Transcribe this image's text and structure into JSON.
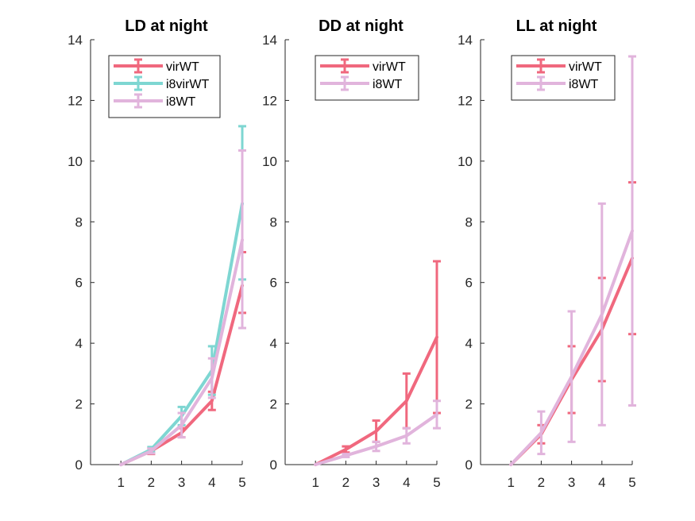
{
  "chart_data": [
    {
      "type": "line",
      "title": "LD at night",
      "x": [
        1,
        2,
        3,
        4,
        5
      ],
      "xlim": [
        0,
        5
      ],
      "ylim": [
        0,
        14
      ],
      "xticks": [
        "1",
        "2",
        "3",
        "4",
        "5"
      ],
      "yticks": [
        "0",
        "2",
        "4",
        "6",
        "8",
        "10",
        "12",
        "14"
      ],
      "legend_position": "top-right",
      "series": [
        {
          "name": "virWT",
          "color": "#f0687e",
          "values": [
            0,
            0.45,
            1.05,
            2.1,
            5.9
          ],
          "err_low": [
            0,
            0.1,
            0.15,
            0.3,
            0.9
          ],
          "err_high": [
            0,
            0.1,
            0.15,
            0.3,
            1.1
          ]
        },
        {
          "name": "i8virWT",
          "color": "#7ed6d2",
          "values": [
            0,
            0.5,
            1.6,
            3.1,
            8.6
          ],
          "err_low": [
            0,
            0.08,
            0.3,
            0.8,
            2.5
          ],
          "err_high": [
            0,
            0.08,
            0.3,
            0.8,
            2.55
          ]
        },
        {
          "name": "i8WT",
          "color": "#e1b4dc",
          "values": [
            0,
            0.45,
            1.3,
            2.85,
            7.4
          ],
          "err_low": [
            0,
            0.08,
            0.4,
            0.65,
            2.9
          ],
          "err_high": [
            0,
            0.08,
            0.4,
            0.65,
            2.95
          ]
        }
      ]
    },
    {
      "type": "line",
      "title": "DD at night",
      "x": [
        1,
        2,
        3,
        4,
        5
      ],
      "xlim": [
        0,
        5
      ],
      "ylim": [
        0,
        14
      ],
      "xticks": [
        "1",
        "2",
        "3",
        "4",
        "5"
      ],
      "yticks": [
        "0",
        "2",
        "4",
        "6",
        "8",
        "10",
        "12",
        "14"
      ],
      "legend_position": "top-center",
      "series": [
        {
          "name": "virWT",
          "color": "#f0687e",
          "values": [
            0,
            0.5,
            1.1,
            2.1,
            4.2
          ],
          "err_low": [
            0,
            0.1,
            0.35,
            0.9,
            2.5
          ],
          "err_high": [
            0,
            0.1,
            0.35,
            0.9,
            2.5
          ]
        },
        {
          "name": "i8WT",
          "color": "#e1b4dc",
          "values": [
            0,
            0.3,
            0.6,
            0.95,
            1.65
          ],
          "err_low": [
            0,
            0.05,
            0.15,
            0.25,
            0.45
          ],
          "err_high": [
            0,
            0.05,
            0.15,
            0.25,
            0.45
          ]
        }
      ]
    },
    {
      "type": "line",
      "title": "LL at night",
      "x": [
        1,
        2,
        3,
        4,
        5
      ],
      "xlim": [
        0,
        5
      ],
      "ylim": [
        0,
        14
      ],
      "xticks": [
        "1",
        "2",
        "3",
        "4",
        "5"
      ],
      "yticks": [
        "0",
        "2",
        "4",
        "6",
        "8",
        "10",
        "12",
        "14"
      ],
      "legend_position": "top-center",
      "series": [
        {
          "name": "virWT",
          "color": "#f0687e",
          "values": [
            0,
            1.0,
            2.8,
            4.45,
            6.8
          ],
          "err_low": [
            0,
            0.3,
            1.1,
            1.7,
            2.5
          ],
          "err_high": [
            0,
            0.3,
            1.1,
            1.7,
            2.5
          ]
        },
        {
          "name": "i8WT",
          "color": "#e1b4dc",
          "values": [
            0,
            1.05,
            2.9,
            4.95,
            7.7
          ],
          "err_low": [
            0,
            0.7,
            2.15,
            3.65,
            5.75
          ],
          "err_high": [
            0,
            0.7,
            2.15,
            3.65,
            5.75
          ]
        }
      ]
    }
  ]
}
